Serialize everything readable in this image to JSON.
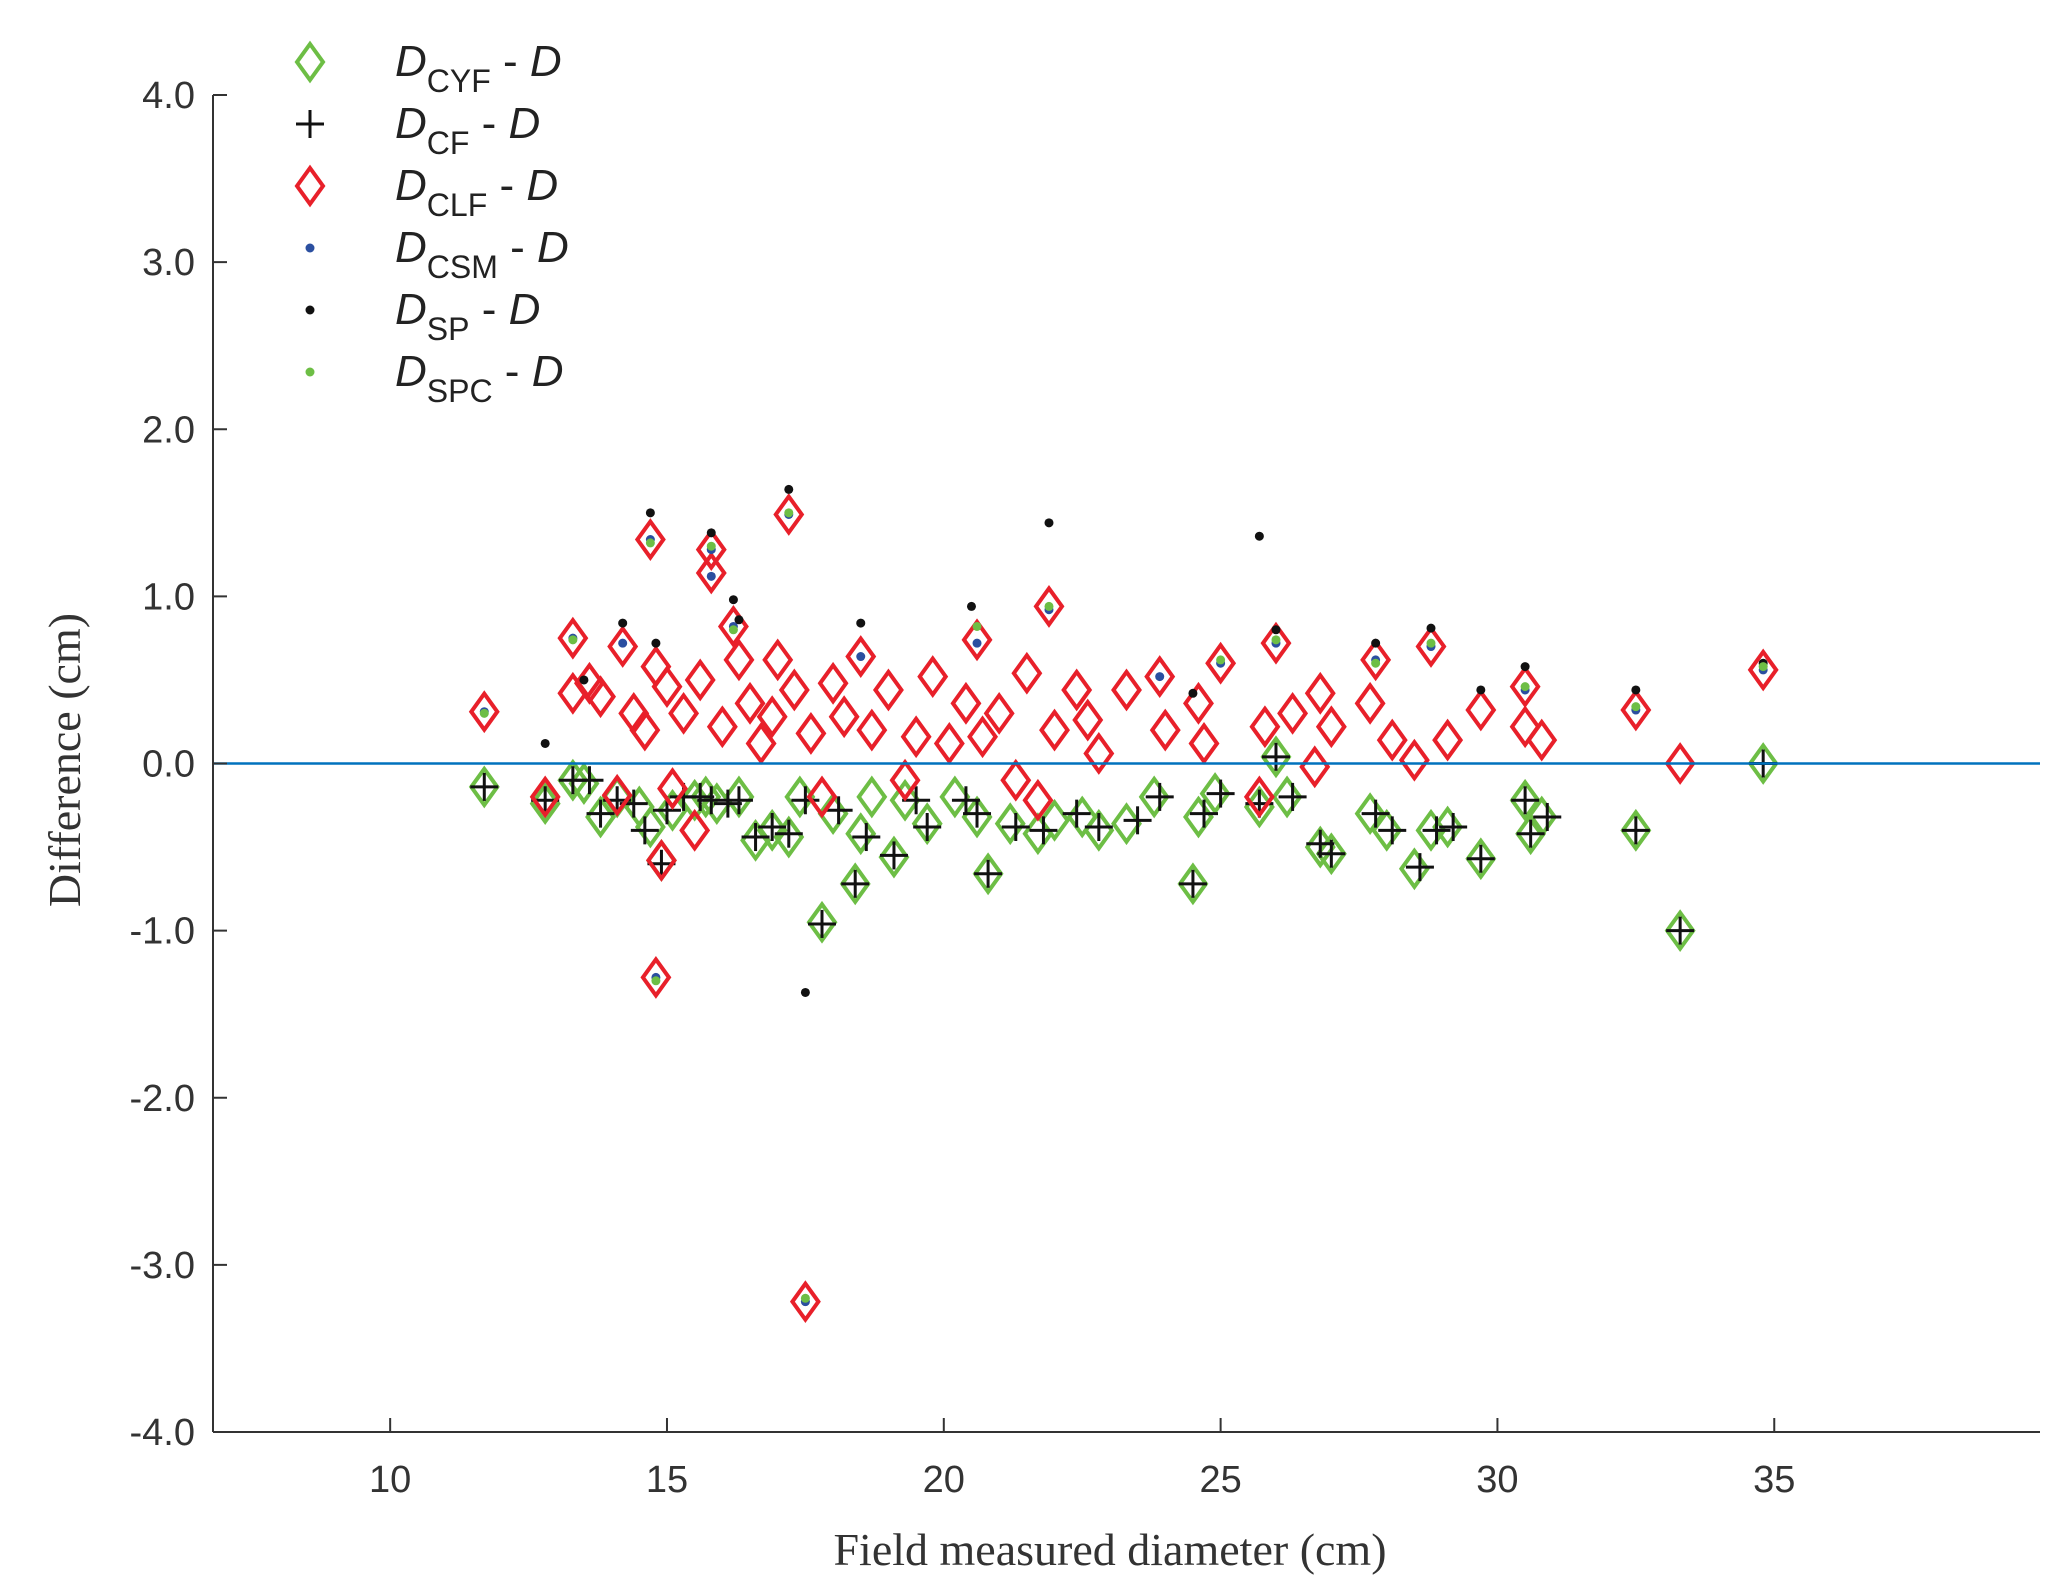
{
  "chart_data": {
    "type": "scatter",
    "title": "",
    "xlabel": "Field measured diameter (cm)",
    "ylabel": "Difference (cm)",
    "xlim": [
      6.8,
      39.8
    ],
    "ylim": [
      -4.0,
      4.0
    ],
    "xticks": [
      "10",
      "15",
      "20",
      "25",
      "30",
      "35"
    ],
    "yticks": [
      "4.0",
      "3.0",
      "2.0",
      "1.0",
      "0.0",
      "-1.0",
      "-2.0",
      "-3.0",
      "-4.0"
    ],
    "reference_line": {
      "y": 0.0,
      "color": "#0072BD"
    },
    "grid": false,
    "legend_position": "top-left",
    "colors": {
      "green": "#6DBE45",
      "black": "#111111",
      "red": "#E8202A",
      "blue": "#2B4FA0"
    },
    "series": [
      {
        "name": "D_CYF - D",
        "legend": {
          "main": "D",
          "sub": "CYF",
          "suffix": " - ",
          "suffix_italic": "D"
        },
        "marker": "diamond-open",
        "color": "#6DBE45",
        "points": [
          [
            11.7,
            -0.14
          ],
          [
            12.8,
            -0.24
          ],
          [
            13.3,
            -0.1
          ],
          [
            13.5,
            -0.12
          ],
          [
            13.8,
            -0.32
          ],
          [
            14.1,
            -0.2
          ],
          [
            14.5,
            -0.26
          ],
          [
            14.7,
            -0.38
          ],
          [
            14.9,
            -0.58
          ],
          [
            15.1,
            -0.28
          ],
          [
            15.5,
            -0.22
          ],
          [
            15.7,
            -0.2
          ],
          [
            15.9,
            -0.24
          ],
          [
            16.3,
            -0.2
          ],
          [
            16.6,
            -0.46
          ],
          [
            16.9,
            -0.4
          ],
          [
            17.2,
            -0.44
          ],
          [
            17.4,
            -0.2
          ],
          [
            17.8,
            -0.95
          ],
          [
            18.0,
            -0.3
          ],
          [
            18.4,
            -0.72
          ],
          [
            18.5,
            -0.42
          ],
          [
            18.7,
            -0.2
          ],
          [
            19.1,
            -0.56
          ],
          [
            19.3,
            -0.22
          ],
          [
            19.7,
            -0.36
          ],
          [
            20.2,
            -0.2
          ],
          [
            20.6,
            -0.32
          ],
          [
            20.8,
            -0.66
          ],
          [
            21.2,
            -0.36
          ],
          [
            21.7,
            -0.42
          ],
          [
            22.0,
            -0.34
          ],
          [
            22.5,
            -0.32
          ],
          [
            22.8,
            -0.4
          ],
          [
            23.3,
            -0.36
          ],
          [
            23.8,
            -0.2
          ],
          [
            24.5,
            -0.72
          ],
          [
            24.6,
            -0.32
          ],
          [
            24.9,
            -0.18
          ],
          [
            25.7,
            -0.26
          ],
          [
            26.0,
            0.04
          ],
          [
            26.2,
            -0.2
          ],
          [
            26.8,
            -0.5
          ],
          [
            27.0,
            -0.54
          ],
          [
            27.7,
            -0.3
          ],
          [
            28.0,
            -0.4
          ],
          [
            28.5,
            -0.63
          ],
          [
            28.8,
            -0.4
          ],
          [
            29.1,
            -0.38
          ],
          [
            29.7,
            -0.57
          ],
          [
            30.5,
            -0.22
          ],
          [
            30.6,
            -0.42
          ],
          [
            30.8,
            -0.32
          ],
          [
            32.5,
            -0.4
          ],
          [
            33.3,
            -1.0
          ],
          [
            34.8,
            0.0
          ]
        ]
      },
      {
        "name": "D_CF - D",
        "legend": {
          "main": "D",
          "sub": "CF",
          "suffix": " - ",
          "suffix_italic": "D"
        },
        "marker": "plus",
        "color": "#111111",
        "points": [
          [
            11.7,
            -0.14
          ],
          [
            12.8,
            -0.22
          ],
          [
            13.3,
            -0.1
          ],
          [
            13.6,
            -0.1
          ],
          [
            13.8,
            -0.3
          ],
          [
            14.1,
            -0.22
          ],
          [
            14.4,
            -0.24
          ],
          [
            14.6,
            -0.4
          ],
          [
            14.9,
            -0.6
          ],
          [
            15.0,
            -0.28
          ],
          [
            15.3,
            -0.2
          ],
          [
            15.6,
            -0.2
          ],
          [
            15.8,
            -0.22
          ],
          [
            16.1,
            -0.24
          ],
          [
            16.3,
            -0.22
          ],
          [
            16.6,
            -0.44
          ],
          [
            16.9,
            -0.38
          ],
          [
            17.2,
            -0.42
          ],
          [
            17.5,
            -0.22
          ],
          [
            17.8,
            -0.96
          ],
          [
            18.1,
            -0.28
          ],
          [
            18.4,
            -0.72
          ],
          [
            18.6,
            -0.44
          ],
          [
            19.1,
            -0.55
          ],
          [
            19.5,
            -0.22
          ],
          [
            19.7,
            -0.38
          ],
          [
            20.4,
            -0.22
          ],
          [
            20.6,
            -0.3
          ],
          [
            20.8,
            -0.66
          ],
          [
            21.3,
            -0.38
          ],
          [
            21.8,
            -0.4
          ],
          [
            22.4,
            -0.3
          ],
          [
            22.8,
            -0.38
          ],
          [
            23.5,
            -0.34
          ],
          [
            23.9,
            -0.2
          ],
          [
            24.5,
            -0.72
          ],
          [
            24.7,
            -0.3
          ],
          [
            25.0,
            -0.18
          ],
          [
            25.7,
            -0.24
          ],
          [
            26.0,
            0.04
          ],
          [
            26.3,
            -0.2
          ],
          [
            26.8,
            -0.48
          ],
          [
            27.0,
            -0.54
          ],
          [
            27.8,
            -0.3
          ],
          [
            28.1,
            -0.4
          ],
          [
            28.6,
            -0.62
          ],
          [
            28.9,
            -0.4
          ],
          [
            29.2,
            -0.38
          ],
          [
            29.7,
            -0.57
          ],
          [
            30.5,
            -0.22
          ],
          [
            30.6,
            -0.42
          ],
          [
            30.9,
            -0.32
          ],
          [
            32.5,
            -0.4
          ],
          [
            33.3,
            -1.0
          ],
          [
            34.8,
            0.0
          ]
        ]
      },
      {
        "name": "D_CLF - D",
        "legend": {
          "main": "D",
          "sub": "CLF",
          "suffix": " - ",
          "suffix_italic": "D"
        },
        "marker": "diamond-open",
        "color": "#E8202A",
        "points": [
          [
            11.7,
            0.31
          ],
          [
            12.8,
            -0.2
          ],
          [
            13.3,
            0.75
          ],
          [
            13.3,
            0.42
          ],
          [
            13.6,
            0.48
          ],
          [
            13.8,
            0.4
          ],
          [
            14.1,
            -0.19
          ],
          [
            14.2,
            0.7
          ],
          [
            14.4,
            0.3
          ],
          [
            14.6,
            0.2
          ],
          [
            14.7,
            1.34
          ],
          [
            14.8,
            0.58
          ],
          [
            14.8,
            -1.28
          ],
          [
            14.9,
            -0.58
          ],
          [
            15.0,
            0.46
          ],
          [
            15.1,
            -0.15
          ],
          [
            15.3,
            0.3
          ],
          [
            15.5,
            -0.4
          ],
          [
            15.6,
            0.5
          ],
          [
            15.8,
            1.28
          ],
          [
            15.8,
            1.14
          ],
          [
            16.0,
            0.22
          ],
          [
            16.2,
            0.82
          ],
          [
            16.3,
            0.62
          ],
          [
            16.5,
            0.36
          ],
          [
            16.7,
            0.12
          ],
          [
            16.9,
            0.28
          ],
          [
            17.0,
            0.62
          ],
          [
            17.2,
            1.49
          ],
          [
            17.3,
            0.44
          ],
          [
            17.5,
            -3.22
          ],
          [
            17.6,
            0.18
          ],
          [
            17.8,
            -0.2
          ],
          [
            18.0,
            0.48
          ],
          [
            18.2,
            0.28
          ],
          [
            18.5,
            0.64
          ],
          [
            18.7,
            0.2
          ],
          [
            19.0,
            0.44
          ],
          [
            19.3,
            -0.1
          ],
          [
            19.5,
            0.16
          ],
          [
            19.8,
            0.52
          ],
          [
            20.1,
            0.12
          ],
          [
            20.4,
            0.36
          ],
          [
            20.6,
            0.74
          ],
          [
            20.7,
            0.16
          ],
          [
            21.0,
            0.3
          ],
          [
            21.3,
            -0.1
          ],
          [
            21.5,
            0.54
          ],
          [
            21.7,
            -0.22
          ],
          [
            21.9,
            0.94
          ],
          [
            22.0,
            0.2
          ],
          [
            22.4,
            0.44
          ],
          [
            22.6,
            0.26
          ],
          [
            22.8,
            0.06
          ],
          [
            23.3,
            0.44
          ],
          [
            23.9,
            0.52
          ],
          [
            24.0,
            0.2
          ],
          [
            24.6,
            0.36
          ],
          [
            24.7,
            0.12
          ],
          [
            25.0,
            0.6
          ],
          [
            25.7,
            -0.2
          ],
          [
            25.8,
            0.22
          ],
          [
            26.0,
            0.72
          ],
          [
            26.3,
            0.3
          ],
          [
            26.7,
            -0.02
          ],
          [
            26.8,
            0.42
          ],
          [
            27.0,
            0.22
          ],
          [
            27.8,
            0.62
          ],
          [
            27.7,
            0.36
          ],
          [
            28.1,
            0.14
          ],
          [
            28.5,
            0.02
          ],
          [
            28.8,
            0.7
          ],
          [
            29.1,
            0.14
          ],
          [
            29.7,
            0.32
          ],
          [
            30.5,
            0.46
          ],
          [
            30.5,
            0.22
          ],
          [
            30.8,
            0.14
          ],
          [
            32.5,
            0.32
          ],
          [
            33.3,
            0.0
          ],
          [
            34.8,
            0.56
          ]
        ]
      },
      {
        "name": "D_CSM - D",
        "legend": {
          "main": "D",
          "sub": "CSM",
          "suffix": " - ",
          "suffix_italic": "D"
        },
        "marker": "dot",
        "color": "#2B4FA0",
        "points": [
          [
            11.7,
            0.31
          ],
          [
            13.3,
            0.75
          ],
          [
            14.2,
            0.72
          ],
          [
            14.7,
            1.34
          ],
          [
            14.8,
            -1.28
          ],
          [
            15.8,
            1.28
          ],
          [
            15.8,
            1.12
          ],
          [
            16.2,
            0.82
          ],
          [
            17.2,
            1.49
          ],
          [
            17.5,
            -3.22
          ],
          [
            18.5,
            0.64
          ],
          [
            20.6,
            0.72
          ],
          [
            21.9,
            0.92
          ],
          [
            23.9,
            0.52
          ],
          [
            25.0,
            0.6
          ],
          [
            26.0,
            0.72
          ],
          [
            27.8,
            0.62
          ],
          [
            28.8,
            0.7
          ],
          [
            30.5,
            0.44
          ],
          [
            32.5,
            0.32
          ],
          [
            34.8,
            0.56
          ]
        ]
      },
      {
        "name": "D_SP - D",
        "legend": {
          "main": "D",
          "sub": "SP",
          "suffix": " - ",
          "suffix_italic": "D"
        },
        "marker": "dot",
        "color": "#111111",
        "points": [
          [
            12.8,
            0.12
          ],
          [
            13.5,
            0.5
          ],
          [
            14.2,
            0.84
          ],
          [
            14.7,
            1.5
          ],
          [
            14.8,
            0.72
          ],
          [
            15.8,
            1.38
          ],
          [
            16.2,
            0.98
          ],
          [
            16.3,
            0.86
          ],
          [
            17.2,
            1.64
          ],
          [
            17.5,
            -1.37
          ],
          [
            18.5,
            0.84
          ],
          [
            20.5,
            0.94
          ],
          [
            21.9,
            1.44
          ],
          [
            24.5,
            0.42
          ],
          [
            25.7,
            1.36
          ],
          [
            26.0,
            0.8
          ],
          [
            27.8,
            0.72
          ],
          [
            28.8,
            0.81
          ],
          [
            29.7,
            0.44
          ],
          [
            30.5,
            0.58
          ],
          [
            32.5,
            0.44
          ],
          [
            34.8,
            0.6
          ]
        ]
      },
      {
        "name": "D_SPC - D",
        "legend": {
          "main": "D",
          "sub": "SPC",
          "suffix": " - ",
          "suffix_italic": "D"
        },
        "marker": "dot",
        "color": "#6DBE45",
        "points": [
          [
            11.7,
            0.3
          ],
          [
            13.3,
            0.74
          ],
          [
            14.7,
            1.32
          ],
          [
            14.8,
            -1.3
          ],
          [
            15.8,
            1.3
          ],
          [
            16.2,
            0.8
          ],
          [
            17.2,
            1.5
          ],
          [
            17.5,
            -3.2
          ],
          [
            20.6,
            0.82
          ],
          [
            21.9,
            0.94
          ],
          [
            25.0,
            0.62
          ],
          [
            26.0,
            0.74
          ],
          [
            27.8,
            0.6
          ],
          [
            28.8,
            0.72
          ],
          [
            30.5,
            0.46
          ],
          [
            32.5,
            0.34
          ],
          [
            34.8,
            0.58
          ]
        ]
      }
    ]
  }
}
